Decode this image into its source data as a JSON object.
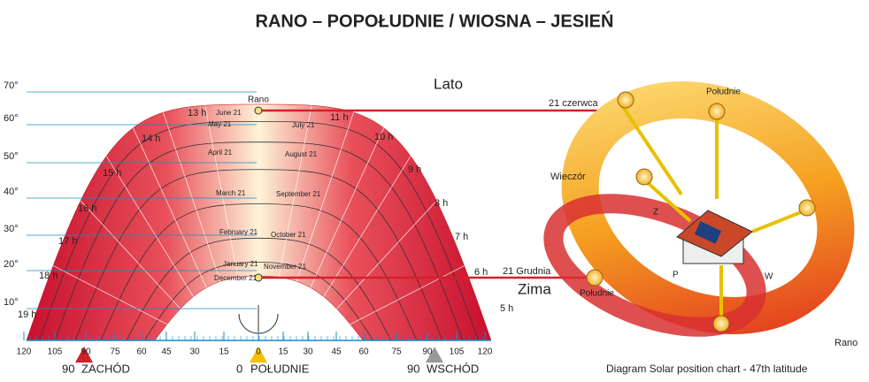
{
  "header": {
    "title": "RANO – POPOŁUDNIE / WIOSNA – JESIEŃ"
  },
  "altitudes": [
    "70°",
    "60°",
    "50°",
    "40°",
    "30°",
    "20°",
    "10°"
  ],
  "hours": [
    "13 h",
    "11 h",
    "14 h",
    "10 h",
    "15 h",
    "9 h",
    "16 h",
    "8 h",
    "17 h",
    "7 h",
    "18 h",
    "6 h",
    "19 h",
    "5 h"
  ],
  "months": [
    "June 21",
    "May 21",
    "July 21",
    "April 21",
    "August 21",
    "March 21",
    "September 21",
    "February 21",
    "October 21",
    "January 21",
    "November 21",
    "December 21"
  ],
  "azimuths": [
    "120",
    "105",
    "90",
    "75",
    "60",
    "45",
    "30",
    "15",
    "0",
    "15",
    "30",
    "45",
    "60",
    "75",
    "90",
    "105",
    "120"
  ],
  "directions": {
    "west_deg": "90",
    "west": "ZACHÓD",
    "south_deg": "0",
    "south": "POŁUDNIE",
    "east_deg": "90",
    "east": "WSCHÓD"
  },
  "labels": {
    "summer": "Lato",
    "winter": "Zima",
    "morning": "Rano",
    "june": "21 czerwca",
    "noon_summer": "Południe",
    "evening": "Wieczór",
    "december": "21 Grudnia",
    "noon_winter": "Południe",
    "morning_right": "Rano",
    "z": "Z",
    "p": "P",
    "w": "W"
  },
  "caption": "Diagram Solar position chart - 47th latitude"
}
